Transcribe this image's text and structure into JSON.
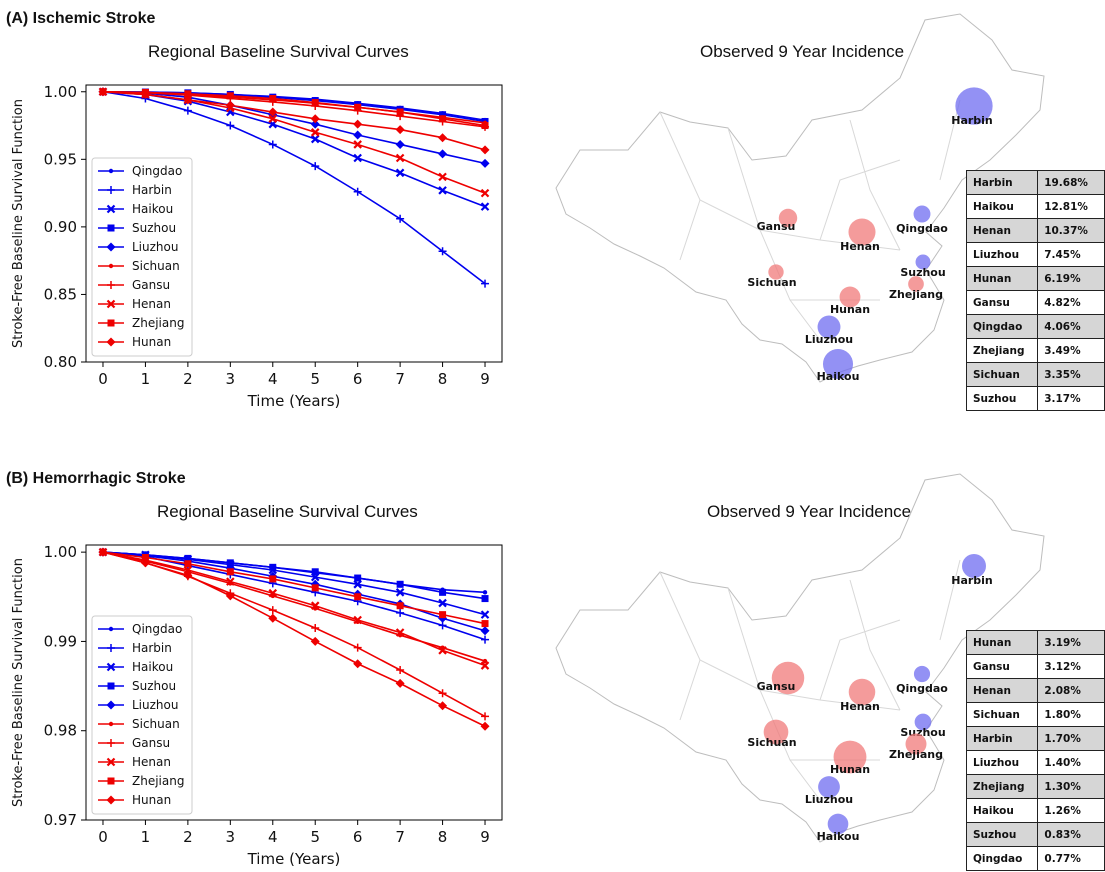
{
  "panels": [
    {
      "title": "(A) Ischemic Stroke",
      "curve_title": "Regional Baseline Survival Curves",
      "map_title": "Observed 9 Year Incidence",
      "incidence_table": [
        {
          "region": "Harbin",
          "value": "19.68%"
        },
        {
          "region": "Haikou",
          "value": "12.81%"
        },
        {
          "region": "Henan",
          "value": "10.37%"
        },
        {
          "region": "Liuzhou",
          "value": "7.45%"
        },
        {
          "region": "Hunan",
          "value": "6.19%"
        },
        {
          "region": "Gansu",
          "value": "4.82%"
        },
        {
          "region": "Qingdao",
          "value": "4.06%"
        },
        {
          "region": "Zhejiang",
          "value": "3.49%"
        },
        {
          "region": "Sichuan",
          "value": "3.35%"
        },
        {
          "region": "Suzhou",
          "value": "3.17%"
        }
      ],
      "map_cities": [
        {
          "name": "Harbin",
          "incidence": 19.68,
          "color": "#6f6cf0"
        },
        {
          "name": "Gansu",
          "incidence": 4.82,
          "color": "#f07a7a"
        },
        {
          "name": "Henan",
          "incidence": 10.37,
          "color": "#f07a7a"
        },
        {
          "name": "Qingdao",
          "incidence": 4.06,
          "color": "#6f6cf0"
        },
        {
          "name": "Suzhou",
          "incidence": 3.17,
          "color": "#6f6cf0"
        },
        {
          "name": "Sichuan",
          "incidence": 3.35,
          "color": "#f07a7a"
        },
        {
          "name": "Hunan",
          "incidence": 6.19,
          "color": "#f07a7a"
        },
        {
          "name": "Zhejiang",
          "incidence": 3.49,
          "color": "#f07a7a"
        },
        {
          "name": "Liuzhou",
          "incidence": 7.45,
          "color": "#6f6cf0"
        },
        {
          "name": "Haikou",
          "incidence": 12.81,
          "color": "#6f6cf0"
        }
      ]
    },
    {
      "title": "(B) Hemorrhagic Stroke",
      "curve_title": "Regional Baseline Survival Curves",
      "map_title": "Observed 9 Year Incidence",
      "incidence_table": [
        {
          "region": "Hunan",
          "value": "3.19%"
        },
        {
          "region": "Gansu",
          "value": "3.12%"
        },
        {
          "region": "Henan",
          "value": "2.08%"
        },
        {
          "region": "Sichuan",
          "value": "1.80%"
        },
        {
          "region": "Harbin",
          "value": "1.70%"
        },
        {
          "region": "Liuzhou",
          "value": "1.40%"
        },
        {
          "region": "Zhejiang",
          "value": "1.30%"
        },
        {
          "region": "Haikou",
          "value": "1.26%"
        },
        {
          "region": "Suzhou",
          "value": "0.83%"
        },
        {
          "region": "Qingdao",
          "value": "0.77%"
        }
      ],
      "map_cities": [
        {
          "name": "Harbin",
          "incidence": 1.7,
          "color": "#6f6cf0"
        },
        {
          "name": "Gansu",
          "incidence": 3.12,
          "color": "#f07a7a"
        },
        {
          "name": "Henan",
          "incidence": 2.08,
          "color": "#f07a7a"
        },
        {
          "name": "Qingdao",
          "incidence": 0.77,
          "color": "#6f6cf0"
        },
        {
          "name": "Suzhou",
          "incidence": 0.83,
          "color": "#6f6cf0"
        },
        {
          "name": "Sichuan",
          "incidence": 1.8,
          "color": "#f07a7a"
        },
        {
          "name": "Hunan",
          "incidence": 3.19,
          "color": "#f07a7a"
        },
        {
          "name": "Zhejiang",
          "incidence": 1.3,
          "color": "#f07a7a"
        },
        {
          "name": "Liuzhou",
          "incidence": 1.4,
          "color": "#6f6cf0"
        },
        {
          "name": "Haikou",
          "incidence": 1.26,
          "color": "#6f6cf0"
        }
      ]
    }
  ],
  "chart_data": [
    {
      "type": "line",
      "title": "Regional Baseline Survival Curves",
      "xlabel": "Time (Years)",
      "ylabel": "Stroke-Free Baseline Survival Function",
      "x": [
        0,
        1,
        2,
        3,
        4,
        5,
        6,
        7,
        8,
        9
      ],
      "xlim": [
        -0.4,
        9.4
      ],
      "ylim": [
        0.8,
        1.005
      ],
      "yticks": [
        "1.00",
        "0.95",
        "0.90",
        "0.85",
        "0.80"
      ],
      "ytick_values": [
        1.0,
        0.95,
        0.9,
        0.85,
        0.8
      ],
      "legend": "lower-left",
      "grid": false,
      "series": [
        {
          "name": "Qingdao",
          "color": "#0000ee",
          "marker": "dot",
          "values": [
            1.0,
            0.9998,
            0.9992,
            0.998,
            0.9965,
            0.9945,
            0.9915,
            0.988,
            0.984,
            0.979
          ]
        },
        {
          "name": "Harbin",
          "color": "#0000ee",
          "marker": "plus",
          "values": [
            1.0,
            0.995,
            0.986,
            0.975,
            0.961,
            0.945,
            0.926,
            0.906,
            0.882,
            0.858
          ]
        },
        {
          "name": "Haikou",
          "color": "#0000ee",
          "marker": "x",
          "values": [
            1.0,
            0.998,
            0.993,
            0.985,
            0.976,
            0.965,
            0.951,
            0.94,
            0.927,
            0.915
          ]
        },
        {
          "name": "Suzhou",
          "color": "#0000ee",
          "marker": "square",
          "values": [
            1.0,
            0.9998,
            0.9992,
            0.998,
            0.996,
            0.9935,
            0.9905,
            0.987,
            0.983,
            0.978
          ]
        },
        {
          "name": "Liuzhou",
          "color": "#0000ee",
          "marker": "diamond",
          "values": [
            1.0,
            0.999,
            0.996,
            0.99,
            0.983,
            0.976,
            0.968,
            0.961,
            0.954,
            0.947
          ]
        },
        {
          "name": "Sichuan",
          "color": "#ee0000",
          "marker": "dot",
          "values": [
            1.0,
            0.9995,
            0.998,
            0.996,
            0.994,
            0.9915,
            0.9885,
            0.985,
            0.981,
            0.977
          ]
        },
        {
          "name": "Gansu",
          "color": "#ee0000",
          "marker": "plus",
          "values": [
            1.0,
            0.9993,
            0.9975,
            0.995,
            0.9925,
            0.9895,
            0.986,
            0.982,
            0.978,
            0.974
          ]
        },
        {
          "name": "Henan",
          "color": "#ee0000",
          "marker": "x",
          "values": [
            1.0,
            0.998,
            0.994,
            0.988,
            0.98,
            0.97,
            0.961,
            0.951,
            0.937,
            0.925
          ]
        },
        {
          "name": "Zhejiang",
          "color": "#ee0000",
          "marker": "square",
          "values": [
            1.0,
            0.9995,
            0.9985,
            0.997,
            0.995,
            0.992,
            0.9885,
            0.985,
            0.98,
            0.975
          ]
        },
        {
          "name": "Hunan",
          "color": "#ee0000",
          "marker": "diamond",
          "values": [
            1.0,
            0.998,
            0.994,
            0.99,
            0.985,
            0.98,
            0.976,
            0.972,
            0.966,
            0.957
          ]
        }
      ]
    },
    {
      "type": "line",
      "title": "Regional Baseline Survival Curves",
      "xlabel": "Time (Years)",
      "ylabel": "Stroke-Free Baseline Survival Function",
      "x": [
        0,
        1,
        2,
        3,
        4,
        5,
        6,
        7,
        8,
        9
      ],
      "xlim": [
        -0.4,
        9.4
      ],
      "ylim": [
        0.97,
        1.0008
      ],
      "yticks": [
        "1.00",
        "0.99",
        "0.98",
        "0.97"
      ],
      "ytick_values": [
        1.0,
        0.99,
        0.98,
        0.97
      ],
      "legend": "lower-left",
      "grid": false,
      "series": [
        {
          "name": "Qingdao",
          "color": "#0000ee",
          "marker": "dot",
          "values": [
            1.0,
            0.9997,
            0.9993,
            0.9988,
            0.9983,
            0.9977,
            0.9971,
            0.9964,
            0.9958,
            0.9955
          ]
        },
        {
          "name": "Harbin",
          "color": "#0000ee",
          "marker": "plus",
          "values": [
            1.0,
            0.9995,
            0.9985,
            0.9975,
            0.9965,
            0.9955,
            0.9945,
            0.9932,
            0.9918,
            0.9902
          ]
        },
        {
          "name": "Haikou",
          "color": "#0000ee",
          "marker": "x",
          "values": [
            1.0,
            0.9997,
            0.9992,
            0.9986,
            0.998,
            0.9972,
            0.9964,
            0.9955,
            0.9943,
            0.993
          ]
        },
        {
          "name": "Suzhou",
          "color": "#0000ee",
          "marker": "square",
          "values": [
            1.0,
            0.9997,
            0.9993,
            0.9988,
            0.9983,
            0.9978,
            0.9971,
            0.9964,
            0.9955,
            0.9948
          ]
        },
        {
          "name": "Liuzhou",
          "color": "#0000ee",
          "marker": "diamond",
          "values": [
            1.0,
            0.9996,
            0.999,
            0.9982,
            0.9973,
            0.9964,
            0.9953,
            0.9942,
            0.9926,
            0.9912
          ]
        },
        {
          "name": "Sichuan",
          "color": "#ee0000",
          "marker": "dot",
          "values": [
            1.0,
            0.999,
            0.9978,
            0.9965,
            0.9951,
            0.9937,
            0.9922,
            0.9907,
            0.9893,
            0.9878
          ]
        },
        {
          "name": "Gansu",
          "color": "#ee0000",
          "marker": "plus",
          "values": [
            1.0,
            0.9988,
            0.9973,
            0.9954,
            0.9935,
            0.9915,
            0.9893,
            0.9868,
            0.9842,
            0.9816
          ]
        },
        {
          "name": "Henan",
          "color": "#ee0000",
          "marker": "x",
          "values": [
            1.0,
            0.9991,
            0.998,
            0.9967,
            0.9954,
            0.994,
            0.9924,
            0.991,
            0.989,
            0.9873
          ]
        },
        {
          "name": "Zhejiang",
          "color": "#ee0000",
          "marker": "square",
          "values": [
            1.0,
            0.9994,
            0.9987,
            0.9978,
            0.997,
            0.996,
            0.995,
            0.994,
            0.993,
            0.992
          ]
        },
        {
          "name": "Hunan",
          "color": "#ee0000",
          "marker": "diamond",
          "values": [
            1.0,
            0.9988,
            0.9974,
            0.9951,
            0.9926,
            0.99,
            0.9875,
            0.9853,
            0.9828,
            0.9805
          ]
        }
      ]
    }
  ]
}
